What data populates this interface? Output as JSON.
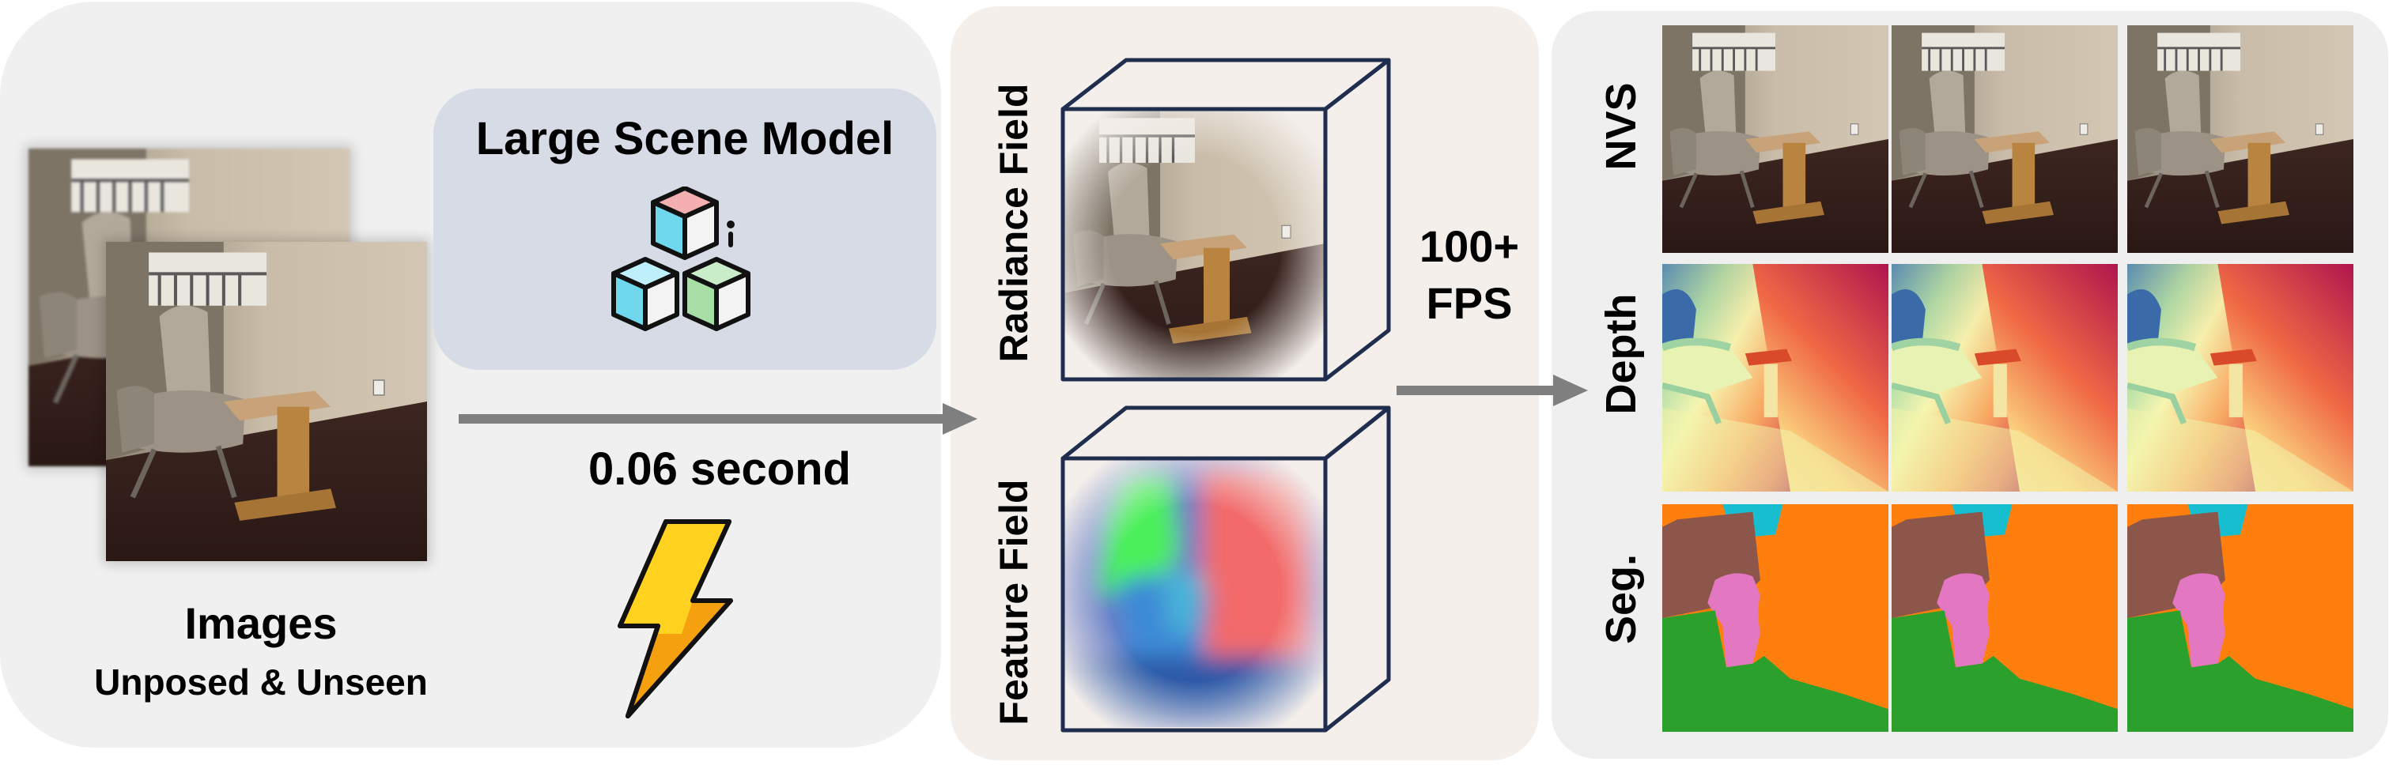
{
  "input": {
    "caption": "Images",
    "subcaption": "Unposed & Unseen"
  },
  "model": {
    "title": "Large Scene Model",
    "icon": "cubes-icon",
    "time": "0.06 second",
    "time_icon": "lightning-bolt-icon"
  },
  "fields": {
    "radiance_label": "Radiance Field",
    "feature_label": "Feature Field"
  },
  "render": {
    "speed_line1": "100+",
    "speed_line2": "FPS"
  },
  "outputs": {
    "rows": [
      {
        "label": "NVS"
      },
      {
        "label": "Depth"
      },
      {
        "label": "Seg."
      }
    ]
  },
  "colors": {
    "arrow": "#7f7f7f",
    "cube_edge": "#1f2d4f",
    "bolt_yellow": "#ffd21f",
    "bolt_orange": "#f4a00f"
  }
}
